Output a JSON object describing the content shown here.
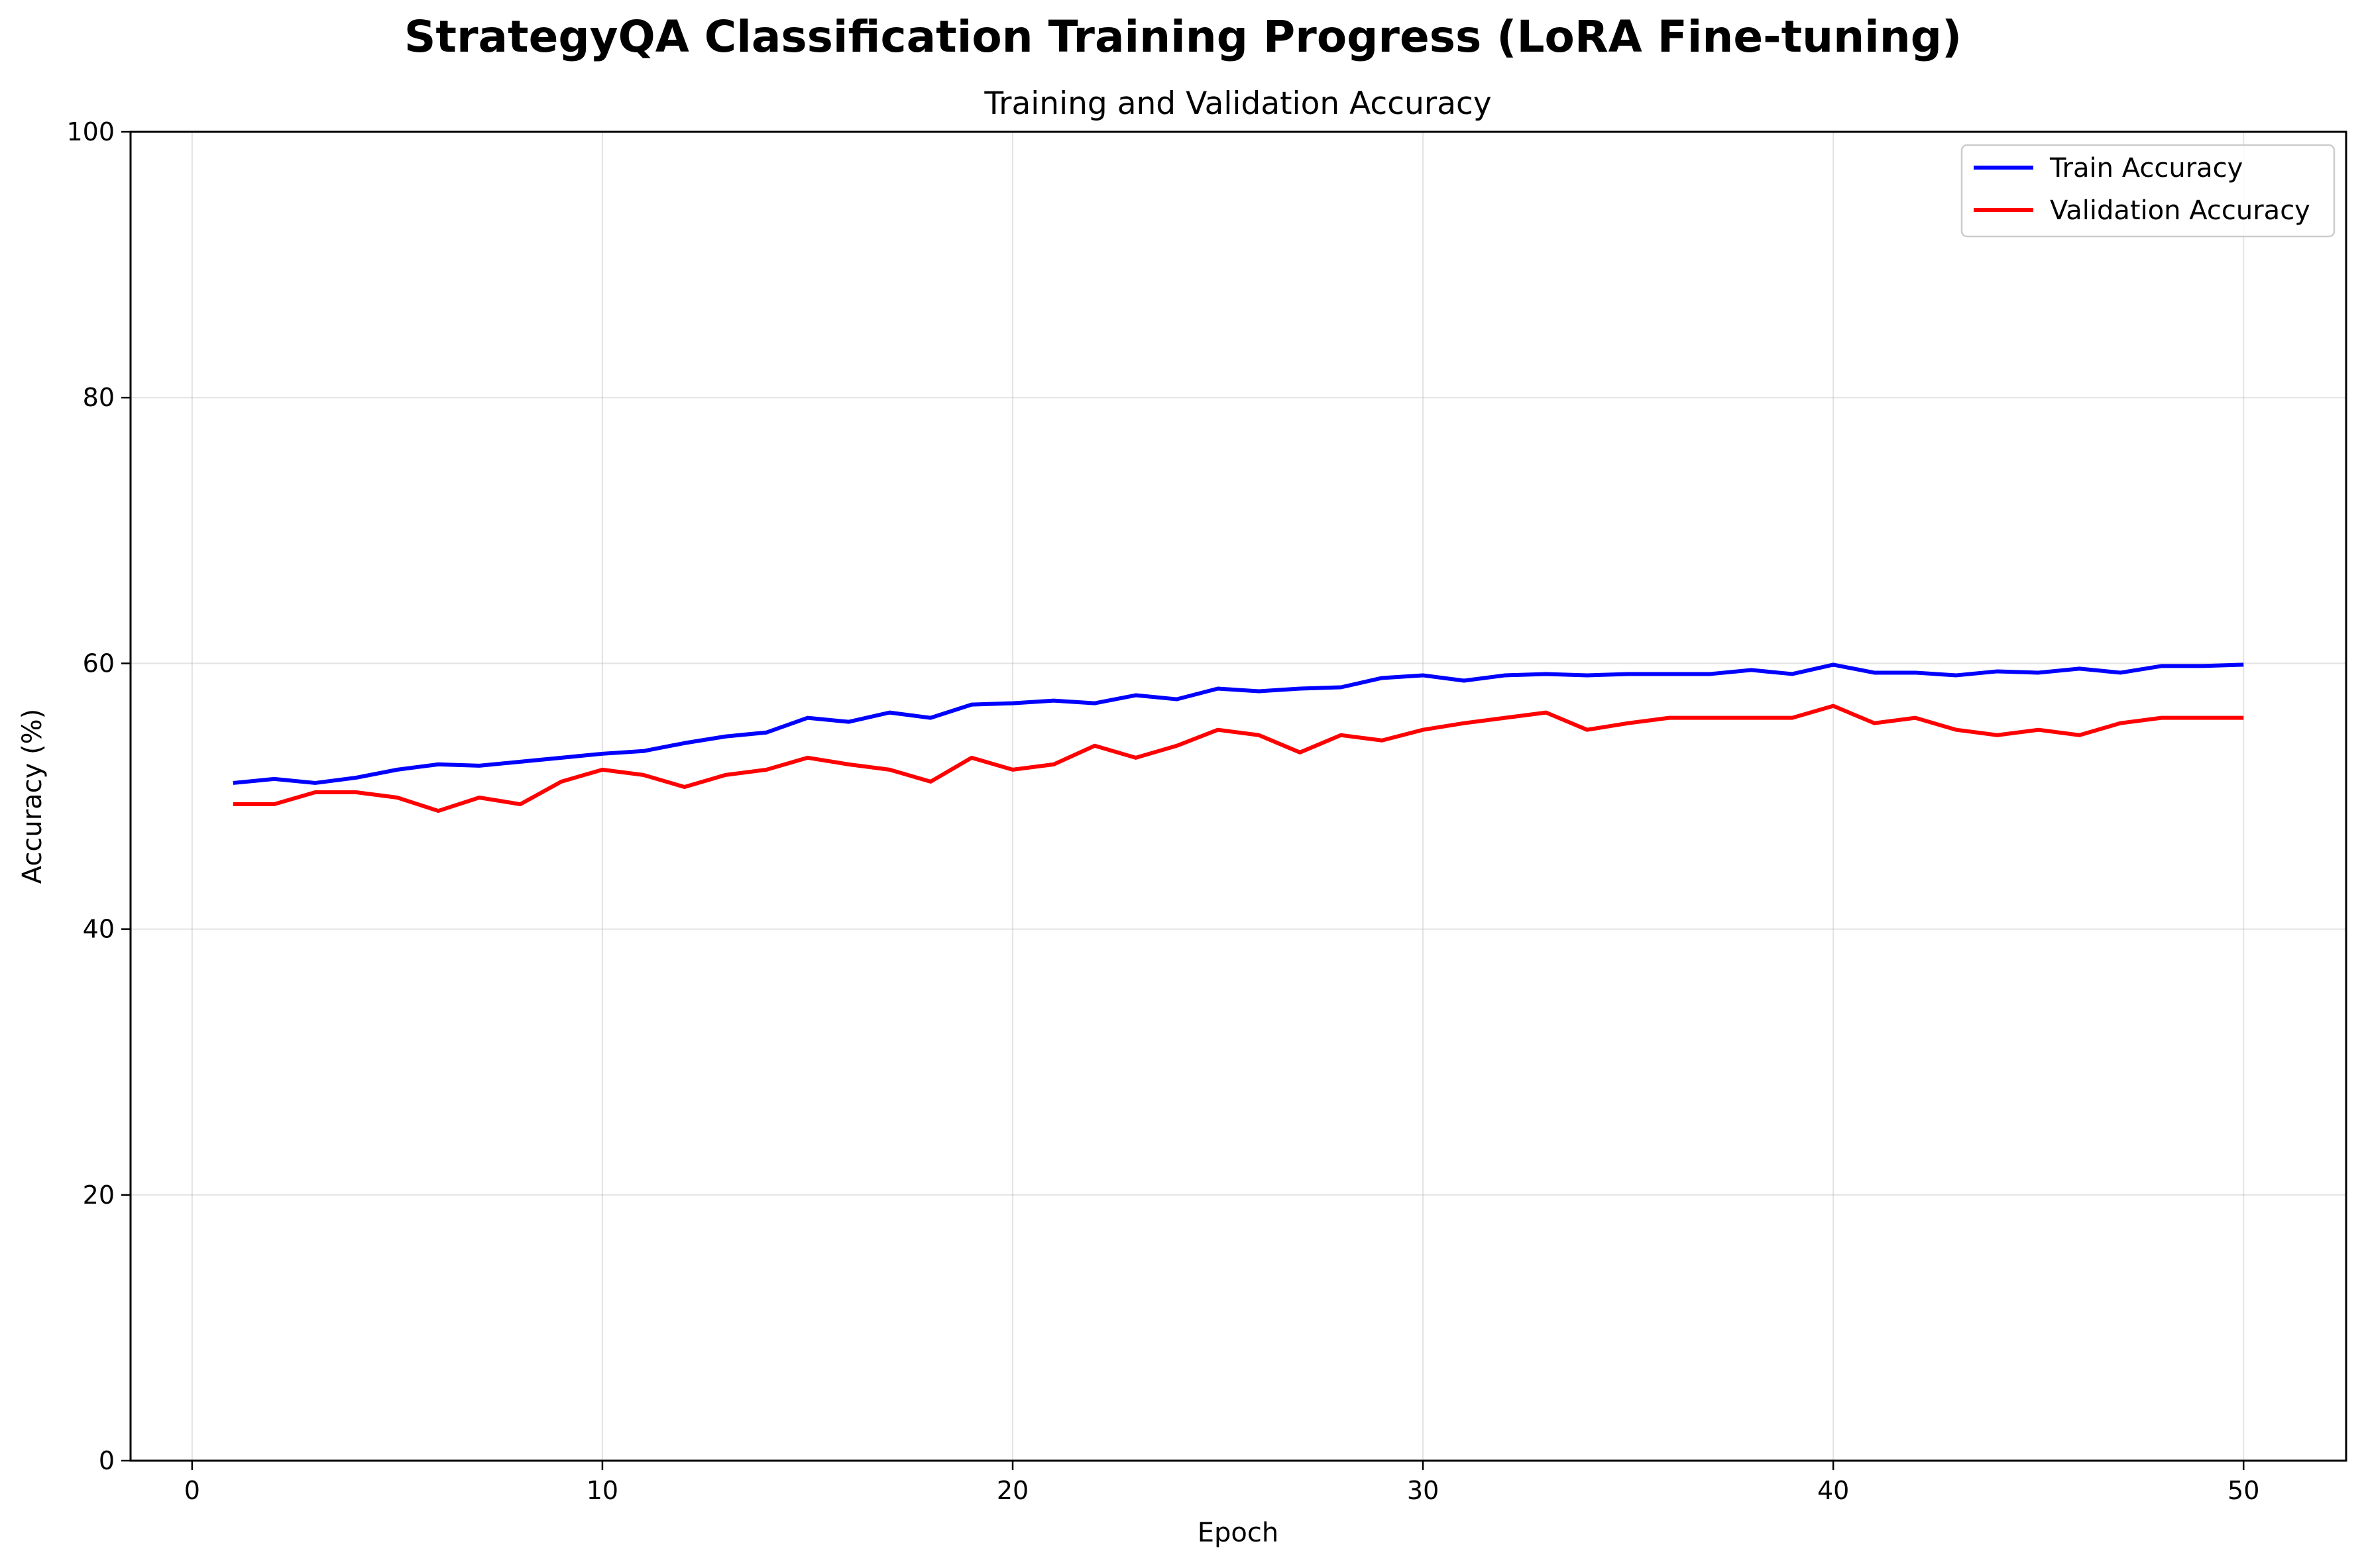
{
  "figure": {
    "title": "StrategyQA Classification Training Progress (LoRA Fine-tuning)"
  },
  "chart_data": {
    "type": "line",
    "title": "Training and Validation Accuracy",
    "xlabel": "Epoch",
    "ylabel": "Accuracy (%)",
    "xlim": [
      -1.5,
      52.5
    ],
    "ylim": [
      0,
      100
    ],
    "xticks": [
      0,
      10,
      20,
      30,
      40,
      50
    ],
    "yticks": [
      0,
      20,
      40,
      60,
      80,
      100
    ],
    "grid": true,
    "legend_position": "top-right",
    "x": [
      1,
      2,
      3,
      4,
      5,
      6,
      7,
      8,
      9,
      10,
      11,
      12,
      13,
      14,
      15,
      16,
      17,
      18,
      19,
      20,
      21,
      22,
      23,
      24,
      25,
      26,
      27,
      28,
      29,
      30,
      31,
      32,
      33,
      34,
      35,
      36,
      37,
      38,
      39,
      40,
      41,
      42,
      43,
      44,
      45,
      46,
      47,
      48,
      49,
      50
    ],
    "series": [
      {
        "name": "Train Accuracy",
        "color": "#0000ff",
        "values": [
          51.0,
          51.3,
          51.0,
          51.4,
          52.0,
          52.4,
          52.3,
          52.6,
          52.9,
          53.2,
          53.4,
          54.0,
          54.5,
          54.8,
          55.9,
          55.6,
          56.3,
          55.9,
          56.9,
          57.0,
          57.2,
          57.0,
          57.6,
          57.3,
          58.1,
          57.9,
          58.1,
          58.2,
          58.9,
          59.1,
          58.7,
          59.1,
          59.2,
          59.1,
          59.2,
          59.2,
          59.2,
          59.5,
          59.2,
          59.9,
          59.3,
          59.3,
          59.1,
          59.4,
          59.3,
          59.6,
          59.3,
          59.8,
          59.8,
          59.9
        ]
      },
      {
        "name": "Validation Accuracy",
        "color": "#ff0000",
        "values": [
          49.4,
          49.4,
          50.3,
          50.3,
          49.9,
          48.9,
          49.9,
          49.4,
          51.1,
          52.0,
          51.6,
          50.7,
          51.6,
          52.0,
          52.9,
          52.4,
          52.0,
          51.1,
          52.9,
          52.0,
          52.4,
          53.8,
          52.9,
          53.8,
          55.0,
          54.6,
          53.3,
          54.6,
          54.2,
          55.0,
          55.5,
          55.9,
          56.3,
          55.0,
          55.5,
          55.9,
          55.9,
          55.9,
          55.9,
          56.8,
          55.5,
          55.9,
          55.0,
          54.6,
          55.0,
          54.6,
          55.5,
          55.9,
          55.9,
          55.9
        ]
      }
    ]
  }
}
